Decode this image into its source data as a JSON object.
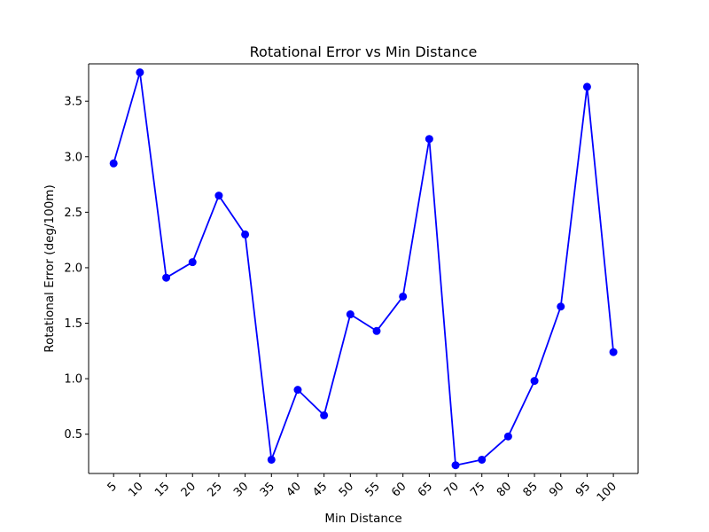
{
  "chart_data": {
    "type": "line",
    "title": "Rotational Error vs Min Distance",
    "xlabel": "Min Distance",
    "ylabel": "Rotational Error (deg/100m)",
    "categories": [
      "5",
      "10",
      "15",
      "20",
      "25",
      "30",
      "35",
      "40",
      "45",
      "50",
      "55",
      "60",
      "65",
      "70",
      "75",
      "80",
      "85",
      "90",
      "95",
      "100"
    ],
    "series": [
      {
        "values": [
          2.94,
          3.76,
          1.91,
          2.05,
          2.65,
          2.3,
          0.27,
          0.9,
          0.67,
          1.58,
          1.43,
          1.74,
          3.16,
          0.22,
          0.27,
          0.48,
          0.98,
          1.65,
          3.63,
          1.24
        ],
        "color": "#0000ff",
        "marker": "circle"
      }
    ],
    "yticks": [
      0.5,
      1.0,
      1.5,
      2.0,
      2.5,
      3.0,
      3.5
    ],
    "ytick_labels": [
      "0.5",
      "1.0",
      "1.5",
      "2.0",
      "2.5",
      "3.0",
      "3.5"
    ],
    "ylim": [
      0.146,
      3.837
    ],
    "grid": false,
    "xtick_rotation": 45
  }
}
